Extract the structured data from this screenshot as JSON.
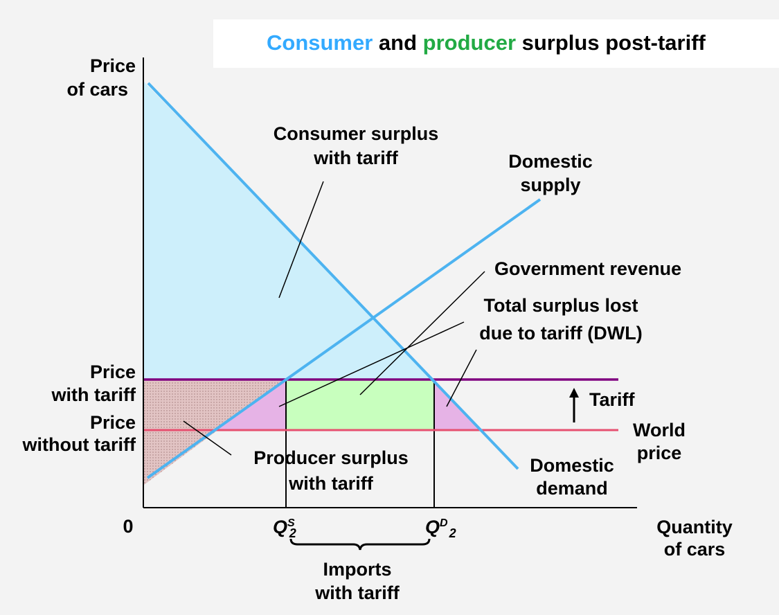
{
  "title": {
    "part1": "Consumer",
    "part2": " and ",
    "part3": "producer",
    "part4": " surplus post-tariff",
    "color_consumer": "#33aaff",
    "color_producer": "#22aa44"
  },
  "axes": {
    "y_label_line1": "Price",
    "y_label_line2": "of cars",
    "x_label_line1": "Quantity",
    "x_label_line2": "of cars",
    "origin": "0"
  },
  "price_labels": {
    "with_tariff_line1": "Price",
    "with_tariff_line2": "with tariff",
    "without_tariff_line1": "Price",
    "without_tariff_line2": "without tariff"
  },
  "quantity_labels": {
    "qs_base": "Q",
    "qs_sup": "S",
    "qs_sub": "2",
    "qd_base": "Q",
    "qd_sup": "D",
    "qd_sub": "2",
    "imports_line1": "Imports",
    "imports_line2": "with tariff"
  },
  "curves": {
    "supply_line1": "Domestic",
    "supply_line2": "supply",
    "demand_line1": "Domestic",
    "demand_line2": "demand",
    "world_line1": "World",
    "world_line2": "price",
    "tariff": "Tariff"
  },
  "annotations": {
    "consumer_line1": "Consumer surplus",
    "consumer_line2": "with tariff",
    "government": "Government revenue",
    "dwl_line1": "Total surplus lost",
    "dwl_line2": "due to tariff (DWL)",
    "producer_line1": "Producer surplus",
    "producer_line2": "with tariff"
  },
  "colors": {
    "curve": "#4db3f0",
    "consumer_area": "#cdeffb",
    "government_area": "#c8ffbe",
    "dwl_area": "#e6b3e6",
    "producer_area": "#e0c0c0",
    "tariff_price_line": "#800080",
    "world_price_line": "#e65070"
  }
}
